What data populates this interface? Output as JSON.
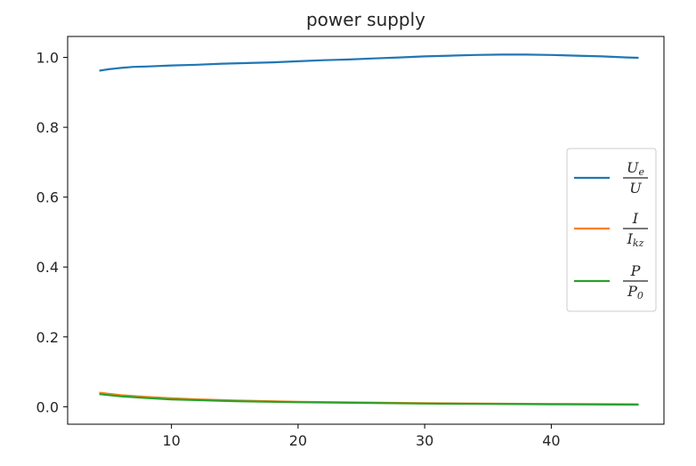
{
  "chart_data": {
    "type": "line",
    "title": "power supply",
    "xlabel": "",
    "ylabel": "",
    "xlim": [
      1.8,
      48.9
    ],
    "ylim": [
      -0.05,
      1.06
    ],
    "xticks": [
      10,
      20,
      30,
      40
    ],
    "yticks": [
      0.0,
      0.2,
      0.4,
      0.6,
      0.8,
      1.0
    ],
    "xtick_labels": [
      "10",
      "20",
      "30",
      "40"
    ],
    "ytick_labels": [
      "0.0",
      "0.2",
      "0.4",
      "0.6",
      "0.8",
      "1.0"
    ],
    "grid": false,
    "legend_position": "center-right",
    "series": [
      {
        "name_num": "U",
        "name_num_sub": "e",
        "name_den": "U",
        "name_den_sub": "",
        "color": "#1f77b4",
        "x": [
          4.3,
          5,
          6,
          7,
          8,
          10,
          12,
          14,
          16,
          18,
          20,
          22,
          24,
          26,
          28,
          30,
          32,
          34,
          36,
          38,
          40,
          42,
          44,
          46,
          46.9
        ],
        "y": [
          0.962,
          0.966,
          0.97,
          0.973,
          0.974,
          0.977,
          0.979,
          0.982,
          0.984,
          0.986,
          0.989,
          0.992,
          0.994,
          0.997,
          1.0,
          1.003,
          1.005,
          1.007,
          1.008,
          1.008,
          1.007,
          1.005,
          1.003,
          1.0,
          0.999
        ]
      },
      {
        "name_num": "I",
        "name_num_sub": "",
        "name_den": "I",
        "name_den_sub": "kz",
        "color": "#ff7f0e",
        "x": [
          4.3,
          6,
          8,
          10,
          12,
          15,
          20,
          25,
          30,
          35,
          40,
          46.9
        ],
        "y": [
          0.04,
          0.033,
          0.028,
          0.024,
          0.021,
          0.018,
          0.014,
          0.012,
          0.01,
          0.009,
          0.008,
          0.007
        ]
      },
      {
        "name_num": "P",
        "name_num_sub": "",
        "name_den": "P",
        "name_den_sub": "0",
        "color": "#2ca02c",
        "x": [
          4.3,
          6,
          8,
          10,
          12,
          15,
          20,
          25,
          30,
          35,
          40,
          46.9
        ],
        "y": [
          0.036,
          0.03,
          0.025,
          0.021,
          0.019,
          0.016,
          0.013,
          0.011,
          0.009,
          0.008,
          0.007,
          0.006
        ]
      }
    ]
  }
}
